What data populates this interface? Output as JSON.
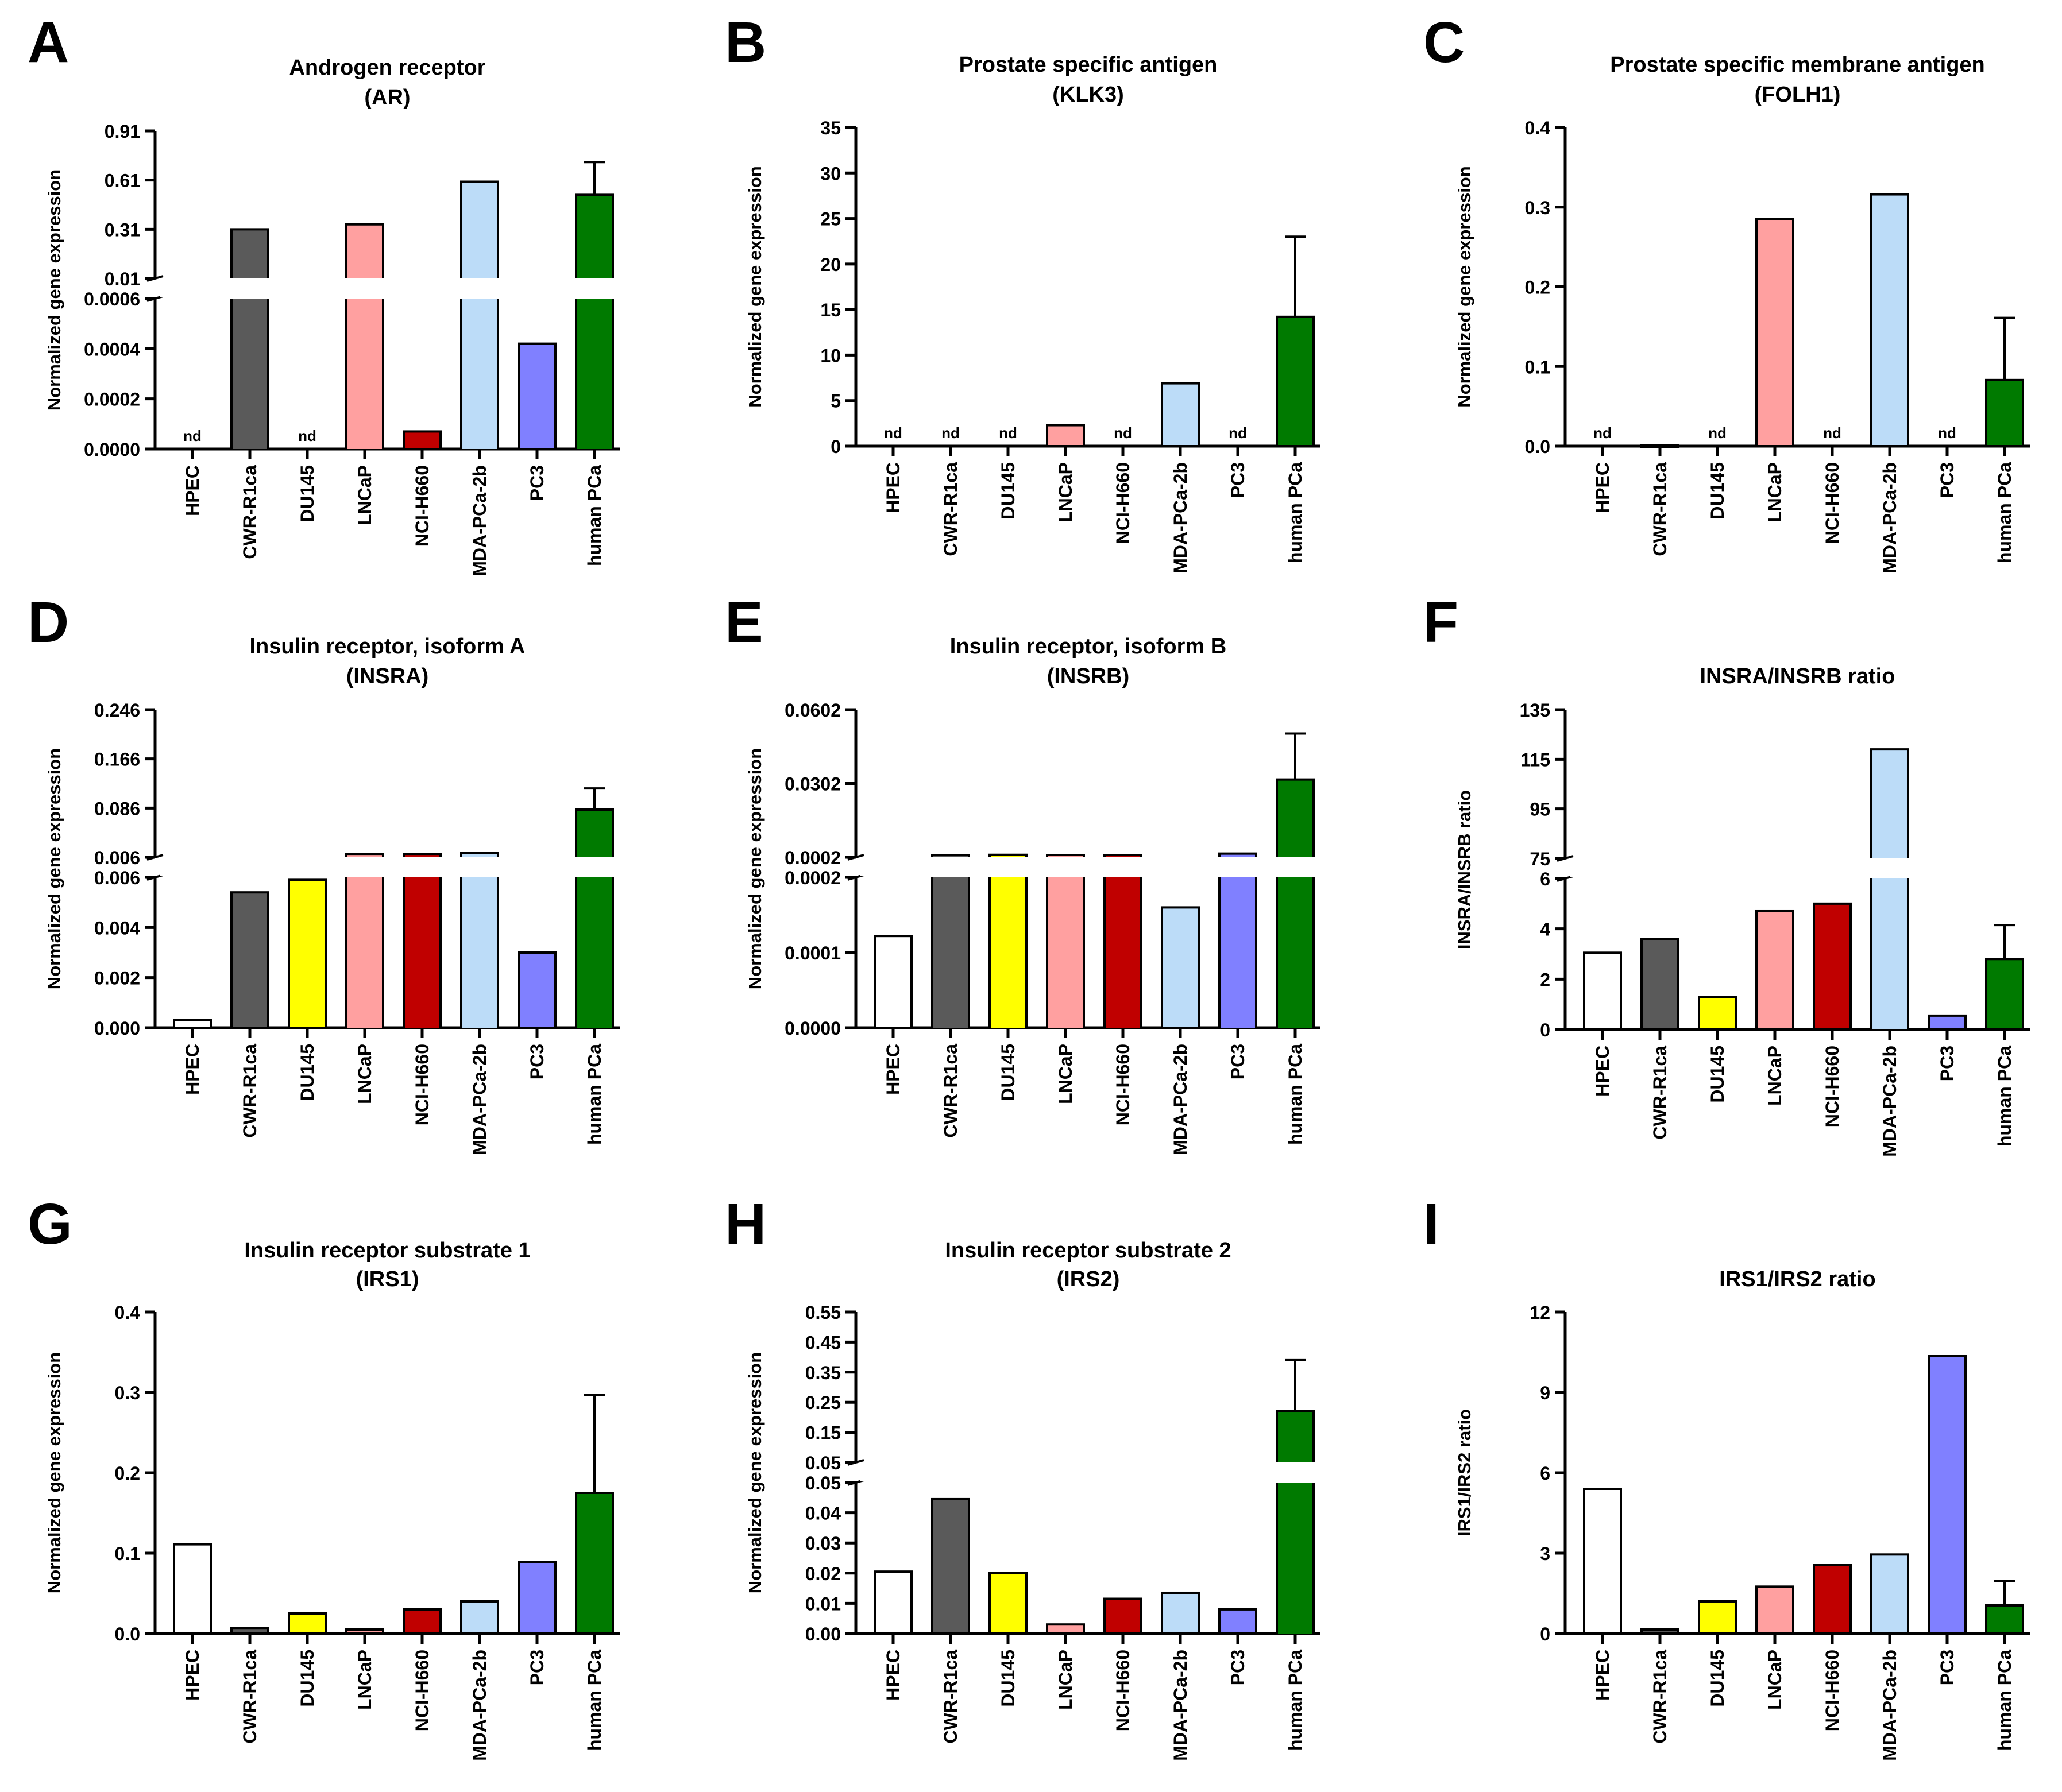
{
  "figure": {
    "colors": {
      "HPEC": "#ffffff",
      "CWR-R1ca": "#5a5a5a",
      "DU145": "#ffff00",
      "LNCaP": "#ffa0a0",
      "NCI-H660": "#c00000",
      "MDA-PCa-2b": "#bcdcf8",
      "PC3": "#8080ff",
      "human PCa": "#007a00"
    }
  },
  "chart_data": [
    {
      "id": "A",
      "letter": "A",
      "type": "bar",
      "title": [
        "Androgen receptor",
        "(AR)"
      ],
      "ylabel": "Normalized gene expression",
      "categories": [
        "HPEC",
        "CWR-R1ca",
        "DU145",
        "LNCaP",
        "NCI-H660",
        "MDA-PCa-2b",
        "PC3",
        "human PCa"
      ],
      "values": [
        0,
        0.31,
        0,
        0.34,
        7e-05,
        0.6,
        0.00042,
        0.52
      ],
      "error": [
        null,
        null,
        null,
        null,
        null,
        null,
        null,
        0.72
      ],
      "nd": [
        true,
        false,
        true,
        false,
        false,
        false,
        false,
        false
      ],
      "broken_axis": true,
      "lower_range": [
        0,
        0.0006
      ],
      "lower_ticks": [
        "0.0000",
        "0.0002",
        "0.0004",
        "0.0006"
      ],
      "upper_range": [
        0.01,
        0.91
      ],
      "upper_ticks": [
        "0.01",
        "0.31",
        "0.61",
        "0.91"
      ]
    },
    {
      "id": "B",
      "letter": "B",
      "type": "bar",
      "title": [
        "Prostate specific antigen",
        "(KLK3)"
      ],
      "ylabel": "Normalized gene expression",
      "categories": [
        "HPEC",
        "CWR-R1ca",
        "DU145",
        "LNCaP",
        "NCI-H660",
        "MDA-PCa-2b",
        "PC3",
        "human PCa"
      ],
      "values": [
        0,
        0,
        0,
        2.3,
        0,
        6.9,
        0,
        14.2
      ],
      "error": [
        null,
        null,
        null,
        null,
        null,
        null,
        null,
        23
      ],
      "nd": [
        true,
        true,
        true,
        false,
        true,
        false,
        true,
        false
      ],
      "broken_axis": false,
      "range": [
        0,
        35
      ],
      "ticks": [
        "0",
        "5",
        "10",
        "15",
        "20",
        "25",
        "30",
        "35"
      ]
    },
    {
      "id": "C",
      "letter": "C",
      "type": "bar",
      "title": [
        "Prostate specific membrane antigen",
        "(FOLH1)"
      ],
      "ylabel": "Normalized gene expression",
      "categories": [
        "HPEC",
        "CWR-R1ca",
        "DU145",
        "LNCaP",
        "NCI-H660",
        "MDA-PCa-2b",
        "PC3",
        "human PCa"
      ],
      "values": [
        0,
        0.001,
        0,
        0.285,
        0,
        0.316,
        0,
        0.083
      ],
      "error": [
        null,
        null,
        null,
        null,
        null,
        null,
        null,
        0.161
      ],
      "nd": [
        true,
        false,
        true,
        false,
        true,
        false,
        true,
        false
      ],
      "broken_axis": false,
      "range": [
        0,
        0.4
      ],
      "ticks": [
        "0.0",
        "0.1",
        "0.2",
        "0.3",
        "0.4"
      ]
    },
    {
      "id": "D",
      "letter": "D",
      "type": "bar",
      "title": [
        "Insulin receptor, isoform A",
        "(INSRA)"
      ],
      "ylabel": "Normalized gene expression",
      "categories": [
        "HPEC",
        "CWR-R1ca",
        "DU145",
        "LNCaP",
        "NCI-H660",
        "MDA-PCa-2b",
        "PC3",
        "human PCa"
      ],
      "values": [
        0.0003,
        0.0054,
        0.0059,
        0.0115,
        0.0115,
        0.0125,
        0.003,
        0.0835
      ],
      "error": [
        null,
        null,
        null,
        null,
        null,
        null,
        null,
        0.118
      ],
      "nd": [
        false,
        false,
        false,
        false,
        false,
        false,
        false,
        false
      ],
      "broken_axis": true,
      "lower_range": [
        0,
        0.006
      ],
      "lower_ticks": [
        "0.000",
        "0.002",
        "0.004",
        "0.006"
      ],
      "upper_range": [
        0.006,
        0.246
      ],
      "upper_ticks": [
        "0.006",
        "0.086",
        "0.166",
        "0.246"
      ]
    },
    {
      "id": "E",
      "letter": "E",
      "type": "bar",
      "title": [
        "Insulin receptor, isoform B",
        "(INSRB)"
      ],
      "ylabel": "Normalized gene expression",
      "categories": [
        "HPEC",
        "CWR-R1ca",
        "DU145",
        "LNCaP",
        "NCI-H660",
        "MDA-PCa-2b",
        "PC3",
        "human PCa"
      ],
      "values": [
        0.000122,
        0.001,
        0.0012,
        0.0011,
        0.0011,
        0.00016,
        0.0017,
        0.0318
      ],
      "error": [
        null,
        null,
        null,
        null,
        null,
        null,
        null,
        0.0505
      ],
      "nd": [
        false,
        false,
        false,
        false,
        false,
        false,
        false,
        false
      ],
      "broken_axis": true,
      "lower_range": [
        0,
        0.0002
      ],
      "lower_ticks": [
        "0.0000",
        "0.0001",
        "0.0002"
      ],
      "upper_range": [
        0.0002,
        0.0602
      ],
      "upper_ticks": [
        "0.0002",
        "0.0302",
        "0.0602"
      ]
    },
    {
      "id": "F",
      "letter": "F",
      "type": "bar",
      "title": [
        "INSRA/INSRB ratio"
      ],
      "ylabel": "INSRA/INSRB ratio",
      "categories": [
        "HPEC",
        "CWR-R1ca",
        "DU145",
        "LNCaP",
        "NCI-H660",
        "MDA-PCa-2b",
        "PC3",
        "human PCa"
      ],
      "values": [
        3.05,
        3.6,
        1.3,
        4.7,
        5.0,
        119,
        0.55,
        2.8
      ],
      "error": [
        null,
        null,
        null,
        null,
        null,
        null,
        null,
        4.15
      ],
      "nd": [
        false,
        false,
        false,
        false,
        false,
        false,
        false,
        false
      ],
      "broken_axis": true,
      "lower_range": [
        0,
        6
      ],
      "lower_ticks": [
        "0",
        "2",
        "4",
        "6"
      ],
      "upper_range": [
        75,
        135
      ],
      "upper_ticks": [
        "75",
        "95",
        "115",
        "135"
      ]
    },
    {
      "id": "G",
      "letter": "G",
      "type": "bar",
      "title": [
        "Insulin receptor substrate 1",
        "(IRS1)"
      ],
      "ylabel": "Normalized gene expression",
      "categories": [
        "HPEC",
        "CWR-R1ca",
        "DU145",
        "LNCaP",
        "NCI-H660",
        "MDA-PCa-2b",
        "PC3",
        "human PCa"
      ],
      "values": [
        0.111,
        0.007,
        0.025,
        0.005,
        0.03,
        0.04,
        0.089,
        0.175
      ],
      "error": [
        null,
        null,
        null,
        null,
        null,
        null,
        null,
        0.297
      ],
      "nd": [
        false,
        false,
        false,
        false,
        false,
        false,
        false,
        false
      ],
      "broken_axis": false,
      "range": [
        0,
        0.4
      ],
      "ticks": [
        "0.0",
        "0.1",
        "0.2",
        "0.3",
        "0.4"
      ]
    },
    {
      "id": "H",
      "letter": "H",
      "type": "bar",
      "title": [
        "Insulin receptor substrate 2",
        "(IRS2)"
      ],
      "ylabel": "Normalized gene expression",
      "categories": [
        "HPEC",
        "CWR-R1ca",
        "DU145",
        "LNCaP",
        "NCI-H660",
        "MDA-PCa-2b",
        "PC3",
        "human PCa"
      ],
      "values": [
        0.0205,
        0.0445,
        0.02,
        0.003,
        0.0115,
        0.0135,
        0.008,
        0.22
      ],
      "error": [
        null,
        null,
        null,
        null,
        null,
        null,
        null,
        0.39
      ],
      "nd": [
        false,
        false,
        false,
        false,
        false,
        false,
        false,
        false
      ],
      "broken_axis": true,
      "lower_range": [
        0,
        0.05
      ],
      "lower_ticks": [
        "0.00",
        "0.01",
        "0.02",
        "0.03",
        "0.04",
        "0.05"
      ],
      "upper_range": [
        0.05,
        0.55
      ],
      "upper_ticks": [
        "0.05",
        "0.15",
        "0.25",
        "0.35",
        "0.45",
        "0.55"
      ]
    },
    {
      "id": "I",
      "letter": "I",
      "type": "bar",
      "title": [
        "IRS1/IRS2 ratio"
      ],
      "ylabel": "IRS1/IRS2 ratio",
      "categories": [
        "HPEC",
        "CWR-R1ca",
        "DU145",
        "LNCaP",
        "NCI-H660",
        "MDA-PCa-2b",
        "PC3",
        "human PCa"
      ],
      "values": [
        5.4,
        0.15,
        1.2,
        1.75,
        2.55,
        2.95,
        10.35,
        1.05
      ],
      "error": [
        null,
        null,
        null,
        null,
        null,
        null,
        null,
        1.95
      ],
      "nd": [
        false,
        false,
        false,
        false,
        false,
        false,
        false,
        false
      ],
      "broken_axis": false,
      "range": [
        0,
        12
      ],
      "ticks": [
        "0",
        "3",
        "6",
        "9",
        "12"
      ]
    }
  ]
}
